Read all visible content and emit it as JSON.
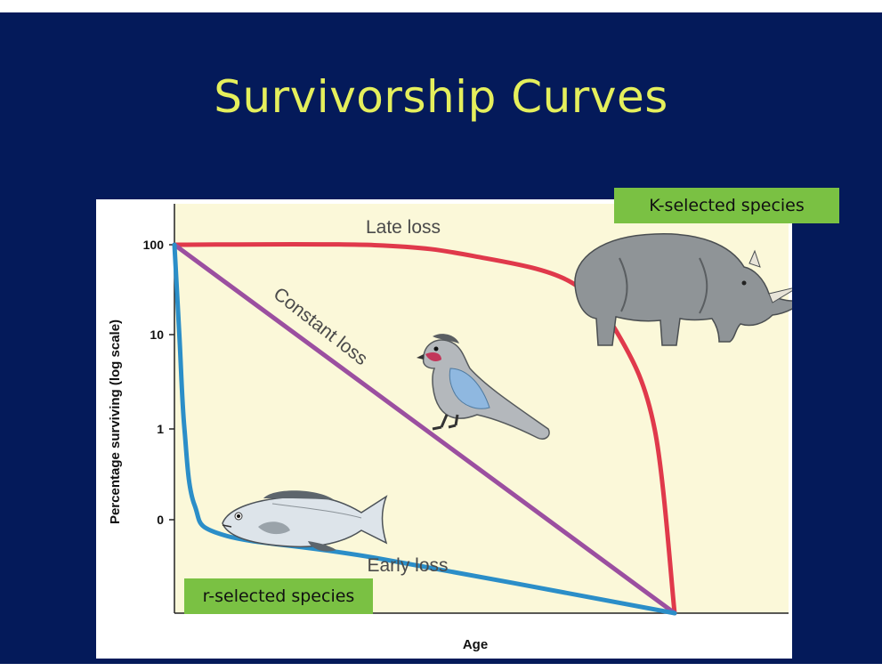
{
  "slide": {
    "title": "Survivorship Curves",
    "background": "#041a5a",
    "title_color": "#e5ef5c"
  },
  "labels": {
    "k_selected": "K-selected species",
    "r_selected": "r-selected species",
    "tag_color": "#7ac143"
  },
  "illustrations": [
    "rhinoceros-icon",
    "bird-icon",
    "fish-icon"
  ],
  "chart_data": {
    "type": "line",
    "xlabel": "Age",
    "ylabel": "Percentage surviving (log scale)",
    "yticks": [
      "100",
      "10",
      "1",
      "0"
    ],
    "plot_background": "#fbf8d9",
    "series": [
      {
        "name": "Late loss",
        "color": "#e0394b",
        "points": [
          [
            0,
            100
          ],
          [
            0.4,
            99
          ],
          [
            0.6,
            75
          ],
          [
            0.79,
            40
          ],
          [
            0.89,
            10
          ],
          [
            0.96,
            1
          ],
          [
            1.0,
            0.01
          ]
        ]
      },
      {
        "name": "Constant loss",
        "color": "#9b4fa0",
        "points": [
          [
            0,
            100
          ],
          [
            1.0,
            0.01
          ]
        ]
      },
      {
        "name": "Early loss",
        "color": "#2b8ec8",
        "points": [
          [
            0,
            100
          ],
          [
            0.01,
            10
          ],
          [
            0.02,
            1
          ],
          [
            0.04,
            0.15
          ],
          [
            0.1,
            0.07
          ],
          [
            0.4,
            0.04
          ],
          [
            1.0,
            0.01
          ]
        ]
      }
    ]
  }
}
